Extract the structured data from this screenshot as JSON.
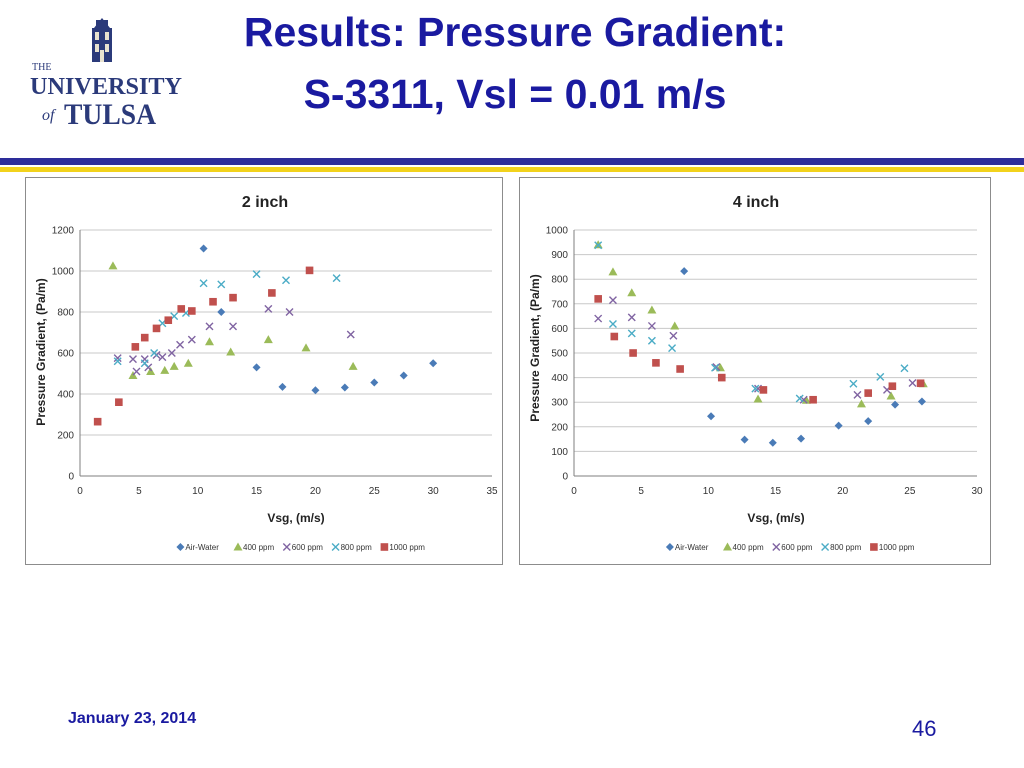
{
  "header": {
    "title_line1": "Results: Pressure Gradient:",
    "title_line2": "S-3311, Vsl = 0.01 m/s"
  },
  "logo": {
    "line1": "THE",
    "line2": "UNIVERSITY",
    "line3": "of",
    "line4": "TULSA",
    "colors": {
      "navy": "#2b3a7a",
      "cream": "#e8e2cf"
    }
  },
  "footer": {
    "date": "January 23, 2014",
    "page_number": "46"
  },
  "colors": {
    "title": "#1a1aa0",
    "rule_navy": "#2d2d9a",
    "rule_gold": "#f2d21c",
    "gridline": "#c8c8c8"
  },
  "chart_data": [
    {
      "type": "scatter",
      "title": "2 inch",
      "xlabel": "Vsg, (m/s)",
      "ylabel": "Pressure Gradient, (Pa/m)",
      "xlim": [
        0,
        35
      ],
      "ylim": [
        0,
        1200
      ],
      "xticks": [
        0,
        5,
        10,
        15,
        20,
        25,
        30,
        35
      ],
      "yticks": [
        0,
        200,
        400,
        600,
        800,
        1000,
        1200
      ],
      "grid": "horizontal",
      "legend_position": "bottom",
      "series": [
        {
          "name": "Air-Water",
          "marker": "diamond",
          "color": "#4a7bb7",
          "points": [
            [
              10.5,
              1110
            ],
            [
              12.0,
              800
            ],
            [
              15.0,
              530
            ],
            [
              17.2,
              435
            ],
            [
              20.0,
              418
            ],
            [
              22.5,
              432
            ],
            [
              25.0,
              456
            ],
            [
              27.5,
              490
            ],
            [
              30.0,
              550
            ]
          ]
        },
        {
          "name": "400 ppm",
          "marker": "triangle",
          "color": "#9bbb59",
          "points": [
            [
              2.8,
              1025
            ],
            [
              4.5,
              490
            ],
            [
              6.0,
              510
            ],
            [
              7.2,
              515
            ],
            [
              8.0,
              535
            ],
            [
              9.2,
              550
            ],
            [
              11.0,
              655
            ],
            [
              12.8,
              605
            ],
            [
              16.0,
              665
            ],
            [
              19.2,
              625
            ],
            [
              23.2,
              535
            ]
          ]
        },
        {
          "name": "600 ppm",
          "marker": "x",
          "color": "#8064a2",
          "points": [
            [
              3.2,
              575
            ],
            [
              4.5,
              570
            ],
            [
              4.8,
              510
            ],
            [
              5.5,
              570
            ],
            [
              5.8,
              530
            ],
            [
              6.5,
              590
            ],
            [
              7.0,
              580
            ],
            [
              7.8,
              600
            ],
            [
              8.5,
              640
            ],
            [
              9.5,
              665
            ],
            [
              11.0,
              730
            ],
            [
              13.0,
              730
            ],
            [
              16.0,
              815
            ],
            [
              17.8,
              800
            ],
            [
              23.0,
              690
            ]
          ]
        },
        {
          "name": "800 ppm",
          "marker": "x",
          "color": "#4bacc6",
          "points": [
            [
              3.2,
              560
            ],
            [
              5.5,
              550
            ],
            [
              6.3,
              600
            ],
            [
              7.0,
              745
            ],
            [
              8.0,
              780
            ],
            [
              9.0,
              795
            ],
            [
              10.5,
              940
            ],
            [
              12.0,
              935
            ],
            [
              15.0,
              985
            ],
            [
              17.5,
              955
            ],
            [
              21.8,
              965
            ]
          ]
        },
        {
          "name": "1000 ppm",
          "marker": "square",
          "color": "#c0504d",
          "points": [
            [
              1.5,
              265
            ],
            [
              3.3,
              360
            ],
            [
              4.7,
              630
            ],
            [
              5.5,
              675
            ],
            [
              6.5,
              720
            ],
            [
              7.5,
              760
            ],
            [
              8.6,
              815
            ],
            [
              9.5,
              805
            ],
            [
              11.3,
              850
            ],
            [
              13.0,
              870
            ],
            [
              16.3,
              893
            ],
            [
              19.5,
              1003
            ]
          ]
        }
      ]
    },
    {
      "type": "scatter",
      "title": "4 inch",
      "xlabel": "Vsg, (m/s)",
      "ylabel": "Pressure Gradient, (Pa/m)",
      "xlim": [
        0,
        30
      ],
      "ylim": [
        0,
        1000
      ],
      "xticks": [
        0,
        5,
        10,
        15,
        20,
        25,
        30
      ],
      "yticks": [
        0,
        100,
        200,
        300,
        400,
        500,
        600,
        700,
        800,
        900,
        1000
      ],
      "grid": "horizontal",
      "legend_position": "bottom",
      "series": [
        {
          "name": "Air-Water",
          "marker": "diamond",
          "color": "#4a7bb7",
          "points": [
            [
              8.2,
              833
            ],
            [
              10.2,
              243
            ],
            [
              12.7,
              148
            ],
            [
              14.8,
              135
            ],
            [
              16.9,
              152
            ],
            [
              19.7,
              205
            ],
            [
              21.9,
              223
            ],
            [
              23.9,
              290
            ],
            [
              25.9,
              303
            ]
          ]
        },
        {
          "name": "400 ppm",
          "marker": "triangle",
          "color": "#9bbb59",
          "points": [
            [
              1.8,
              940
            ],
            [
              2.9,
              830
            ],
            [
              4.3,
              745
            ],
            [
              5.8,
              675
            ],
            [
              7.5,
              610
            ],
            [
              10.9,
              440
            ],
            [
              13.7,
              313
            ],
            [
              17.3,
              308
            ],
            [
              21.4,
              293
            ],
            [
              23.6,
              325
            ],
            [
              26.0,
              375
            ]
          ]
        },
        {
          "name": "600 ppm",
          "marker": "x",
          "color": "#8064a2",
          "points": [
            [
              1.8,
              640
            ],
            [
              2.9,
              715
            ],
            [
              4.3,
              645
            ],
            [
              5.8,
              610
            ],
            [
              7.4,
              570
            ],
            [
              10.6,
              443
            ],
            [
              13.7,
              355
            ],
            [
              17.1,
              310
            ],
            [
              21.1,
              330
            ],
            [
              23.3,
              350
            ],
            [
              25.2,
              378
            ]
          ]
        },
        {
          "name": "800 ppm",
          "marker": "x",
          "color": "#4bacc6",
          "points": [
            [
              1.8,
              938
            ],
            [
              2.9,
              618
            ],
            [
              4.3,
              580
            ],
            [
              5.8,
              550
            ],
            [
              7.3,
              520
            ],
            [
              10.5,
              440
            ],
            [
              13.5,
              355
            ],
            [
              16.8,
              315
            ],
            [
              20.8,
              375
            ],
            [
              22.8,
              403
            ],
            [
              24.6,
              438
            ]
          ]
        },
        {
          "name": "1000 ppm",
          "marker": "square",
          "color": "#c0504d",
          "points": [
            [
              1.8,
              720
            ],
            [
              3.0,
              567
            ],
            [
              4.4,
              500
            ],
            [
              6.1,
              460
            ],
            [
              7.9,
              435
            ],
            [
              11.0,
              400
            ],
            [
              14.1,
              350
            ],
            [
              17.8,
              310
            ],
            [
              21.9,
              337
            ],
            [
              23.7,
              365
            ],
            [
              25.8,
              377
            ]
          ]
        }
      ]
    }
  ]
}
